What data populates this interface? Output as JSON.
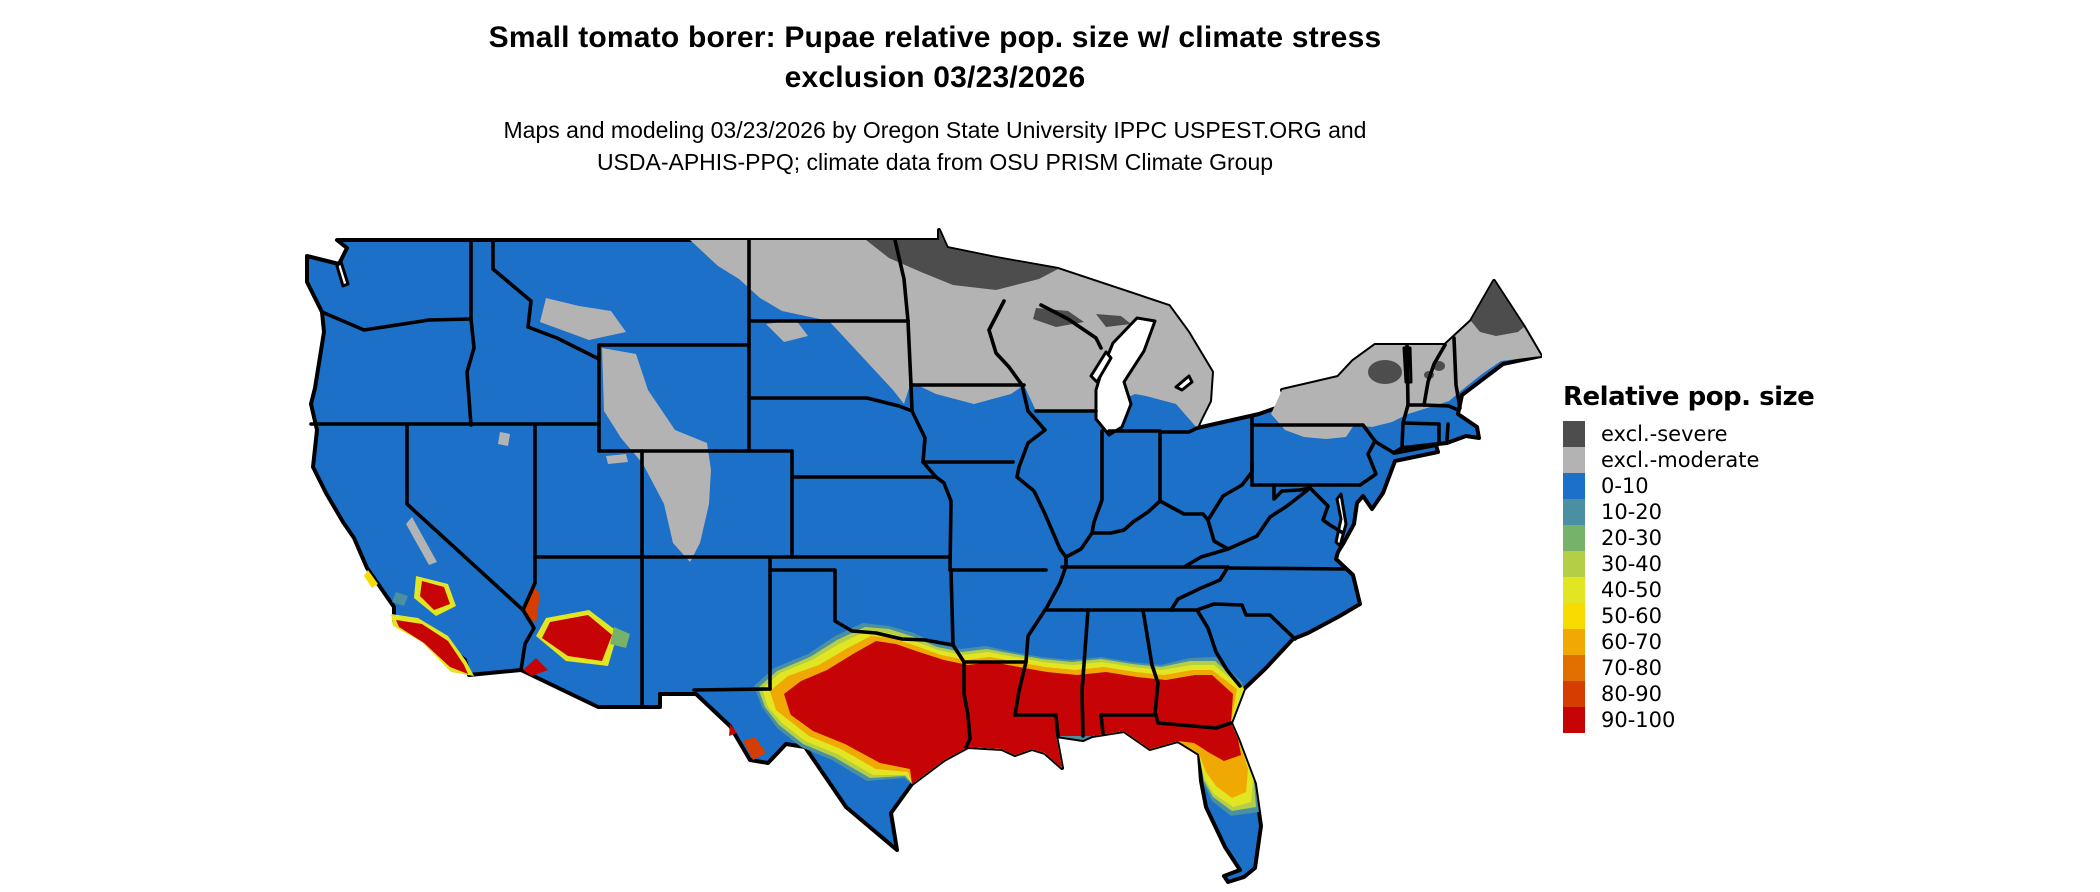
{
  "title": {
    "line1": "Small tomato borer: Pupae relative pop. size w/ climate stress",
    "line2": "exclusion 03/23/2026"
  },
  "subtitle": {
    "line1": "Maps and modeling 03/23/2026 by Oregon State University IPPC USPEST.ORG and",
    "line2": "USDA-APHIS-PPQ; climate data from OSU PRISM Climate Group"
  },
  "legend": {
    "title": "Relative pop. size",
    "items": [
      {
        "label": "excl.-severe",
        "color_key": "excl-severe"
      },
      {
        "label": "excl.-moderate",
        "color_key": "excl-moderate"
      },
      {
        "label": "0-10",
        "color_key": "p0-10"
      },
      {
        "label": "10-20",
        "color_key": "p10-20"
      },
      {
        "label": "20-30",
        "color_key": "p20-30"
      },
      {
        "label": "30-40",
        "color_key": "p30-40"
      },
      {
        "label": "40-50",
        "color_key": "p40-50"
      },
      {
        "label": "50-60",
        "color_key": "p50-60"
      },
      {
        "label": "60-70",
        "color_key": "p60-70"
      },
      {
        "label": "70-80",
        "color_key": "p70-80"
      },
      {
        "label": "80-90",
        "color_key": "p80-90"
      },
      {
        "label": "90-100",
        "color_key": "p90-100"
      }
    ]
  },
  "palette": {
    "excl-severe": "#4D4D4D",
    "excl-moderate": "#B3B3B3",
    "p0-10": "#1C70C8",
    "p10-20": "#4A90A2",
    "p20-30": "#76B26A",
    "p30-40": "#B4CF45",
    "p40-50": "#E2E521",
    "p50-60": "#F8DB00",
    "p60-70": "#EFA902",
    "p70-80": "#E27000",
    "p80-90": "#D53E00",
    "p90-100": "#C60405",
    "border": "#000000",
    "water": "#FFFFFF"
  }
}
